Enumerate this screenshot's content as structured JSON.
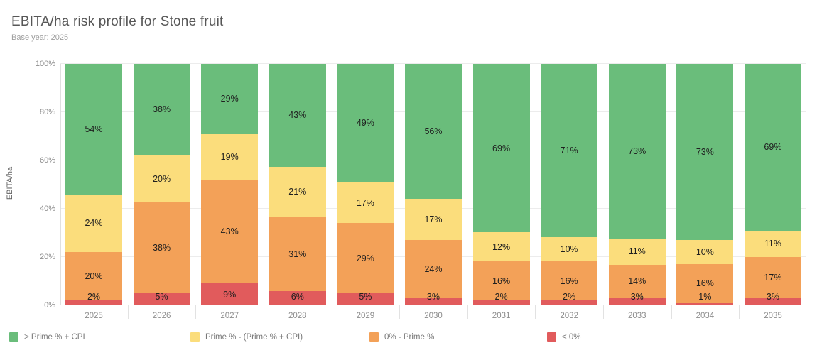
{
  "header": {
    "title": "EBITA/ha risk profile for Stone fruit",
    "subtitle": "Base year: 2025"
  },
  "chart_data": {
    "type": "bar",
    "variant": "stacked-percentage-column",
    "title": "EBITA/ha risk profile for Stone fruit",
    "subtitle": "Base year: 2025",
    "xlabel": "",
    "ylabel": "EBITA/ha",
    "ylim": [
      0,
      100
    ],
    "y_ticks": [
      "0%",
      "20%",
      "40%",
      "60%",
      "80%",
      "100%"
    ],
    "grid": "horizontal",
    "legend_position": "bottom",
    "categories": [
      "2025",
      "2026",
      "2027",
      "2028",
      "2029",
      "2030",
      "2031",
      "2032",
      "2033",
      "2034",
      "2035"
    ],
    "series": [
      {
        "name": "> Prime % + CPI",
        "color": "#6abd7b",
        "values": [
          54,
          38,
          29,
          43,
          49,
          56,
          69,
          71,
          73,
          73,
          69
        ]
      },
      {
        "name": "Prime % - (Prime % + CPI)",
        "color": "#fbdd7c",
        "values": [
          24,
          20,
          19,
          21,
          17,
          17,
          12,
          10,
          11,
          10,
          11
        ]
      },
      {
        "name": "0% - Prime %",
        "color": "#f3a158",
        "values": [
          20,
          38,
          43,
          31,
          29,
          24,
          16,
          16,
          14,
          16,
          17
        ]
      },
      {
        "name": "< 0%",
        "color": "#e15b5c",
        "values": [
          2,
          5,
          9,
          6,
          5,
          3,
          2,
          2,
          3,
          1,
          3
        ]
      }
    ],
    "stack_order_bottom_to_top": [
      "< 0%",
      "0% - Prime %",
      "Prime % - (Prime % + CPI)",
      "> Prime % + CPI"
    ],
    "data_label_format": "{value}%"
  },
  "style_colors": {
    "grid": "#ececec",
    "axis": "#e0e0e0",
    "title_text": "#575757",
    "subtitle_text": "#9e9e9e",
    "tick_text": "#8d8d8d",
    "segment_label_text": "#1f1f1f",
    "legend_text": "#787878"
  }
}
